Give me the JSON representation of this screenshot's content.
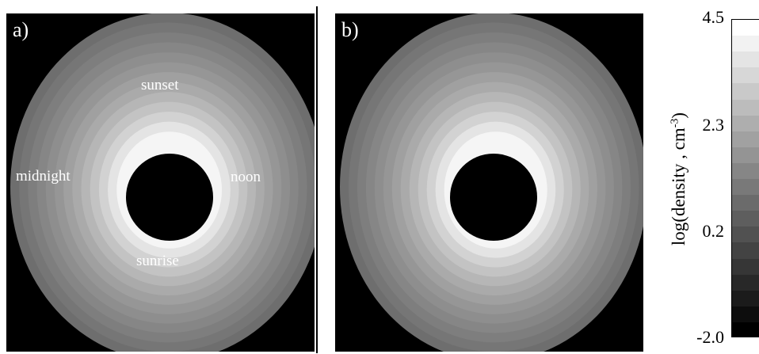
{
  "panels": [
    {
      "label": "a)",
      "annotations": {
        "sunset": "sunset",
        "midnight": "midnight",
        "noon": "noon",
        "sunrise": "sunrise"
      }
    },
    {
      "label": "b)"
    }
  ],
  "colorbar": {
    "axis_title_prefix": "log(density , cm",
    "axis_title_exponent": "-3",
    "axis_title_suffix": ")",
    "ticks": [
      "4.5",
      "2.3",
      "0.2",
      "-2.0"
    ],
    "range": [
      -2.0,
      4.5
    ],
    "levels": 20
  },
  "colors": {
    "background": "#000000",
    "min_gray": "#000000",
    "max_gray": "#ffffff"
  }
}
